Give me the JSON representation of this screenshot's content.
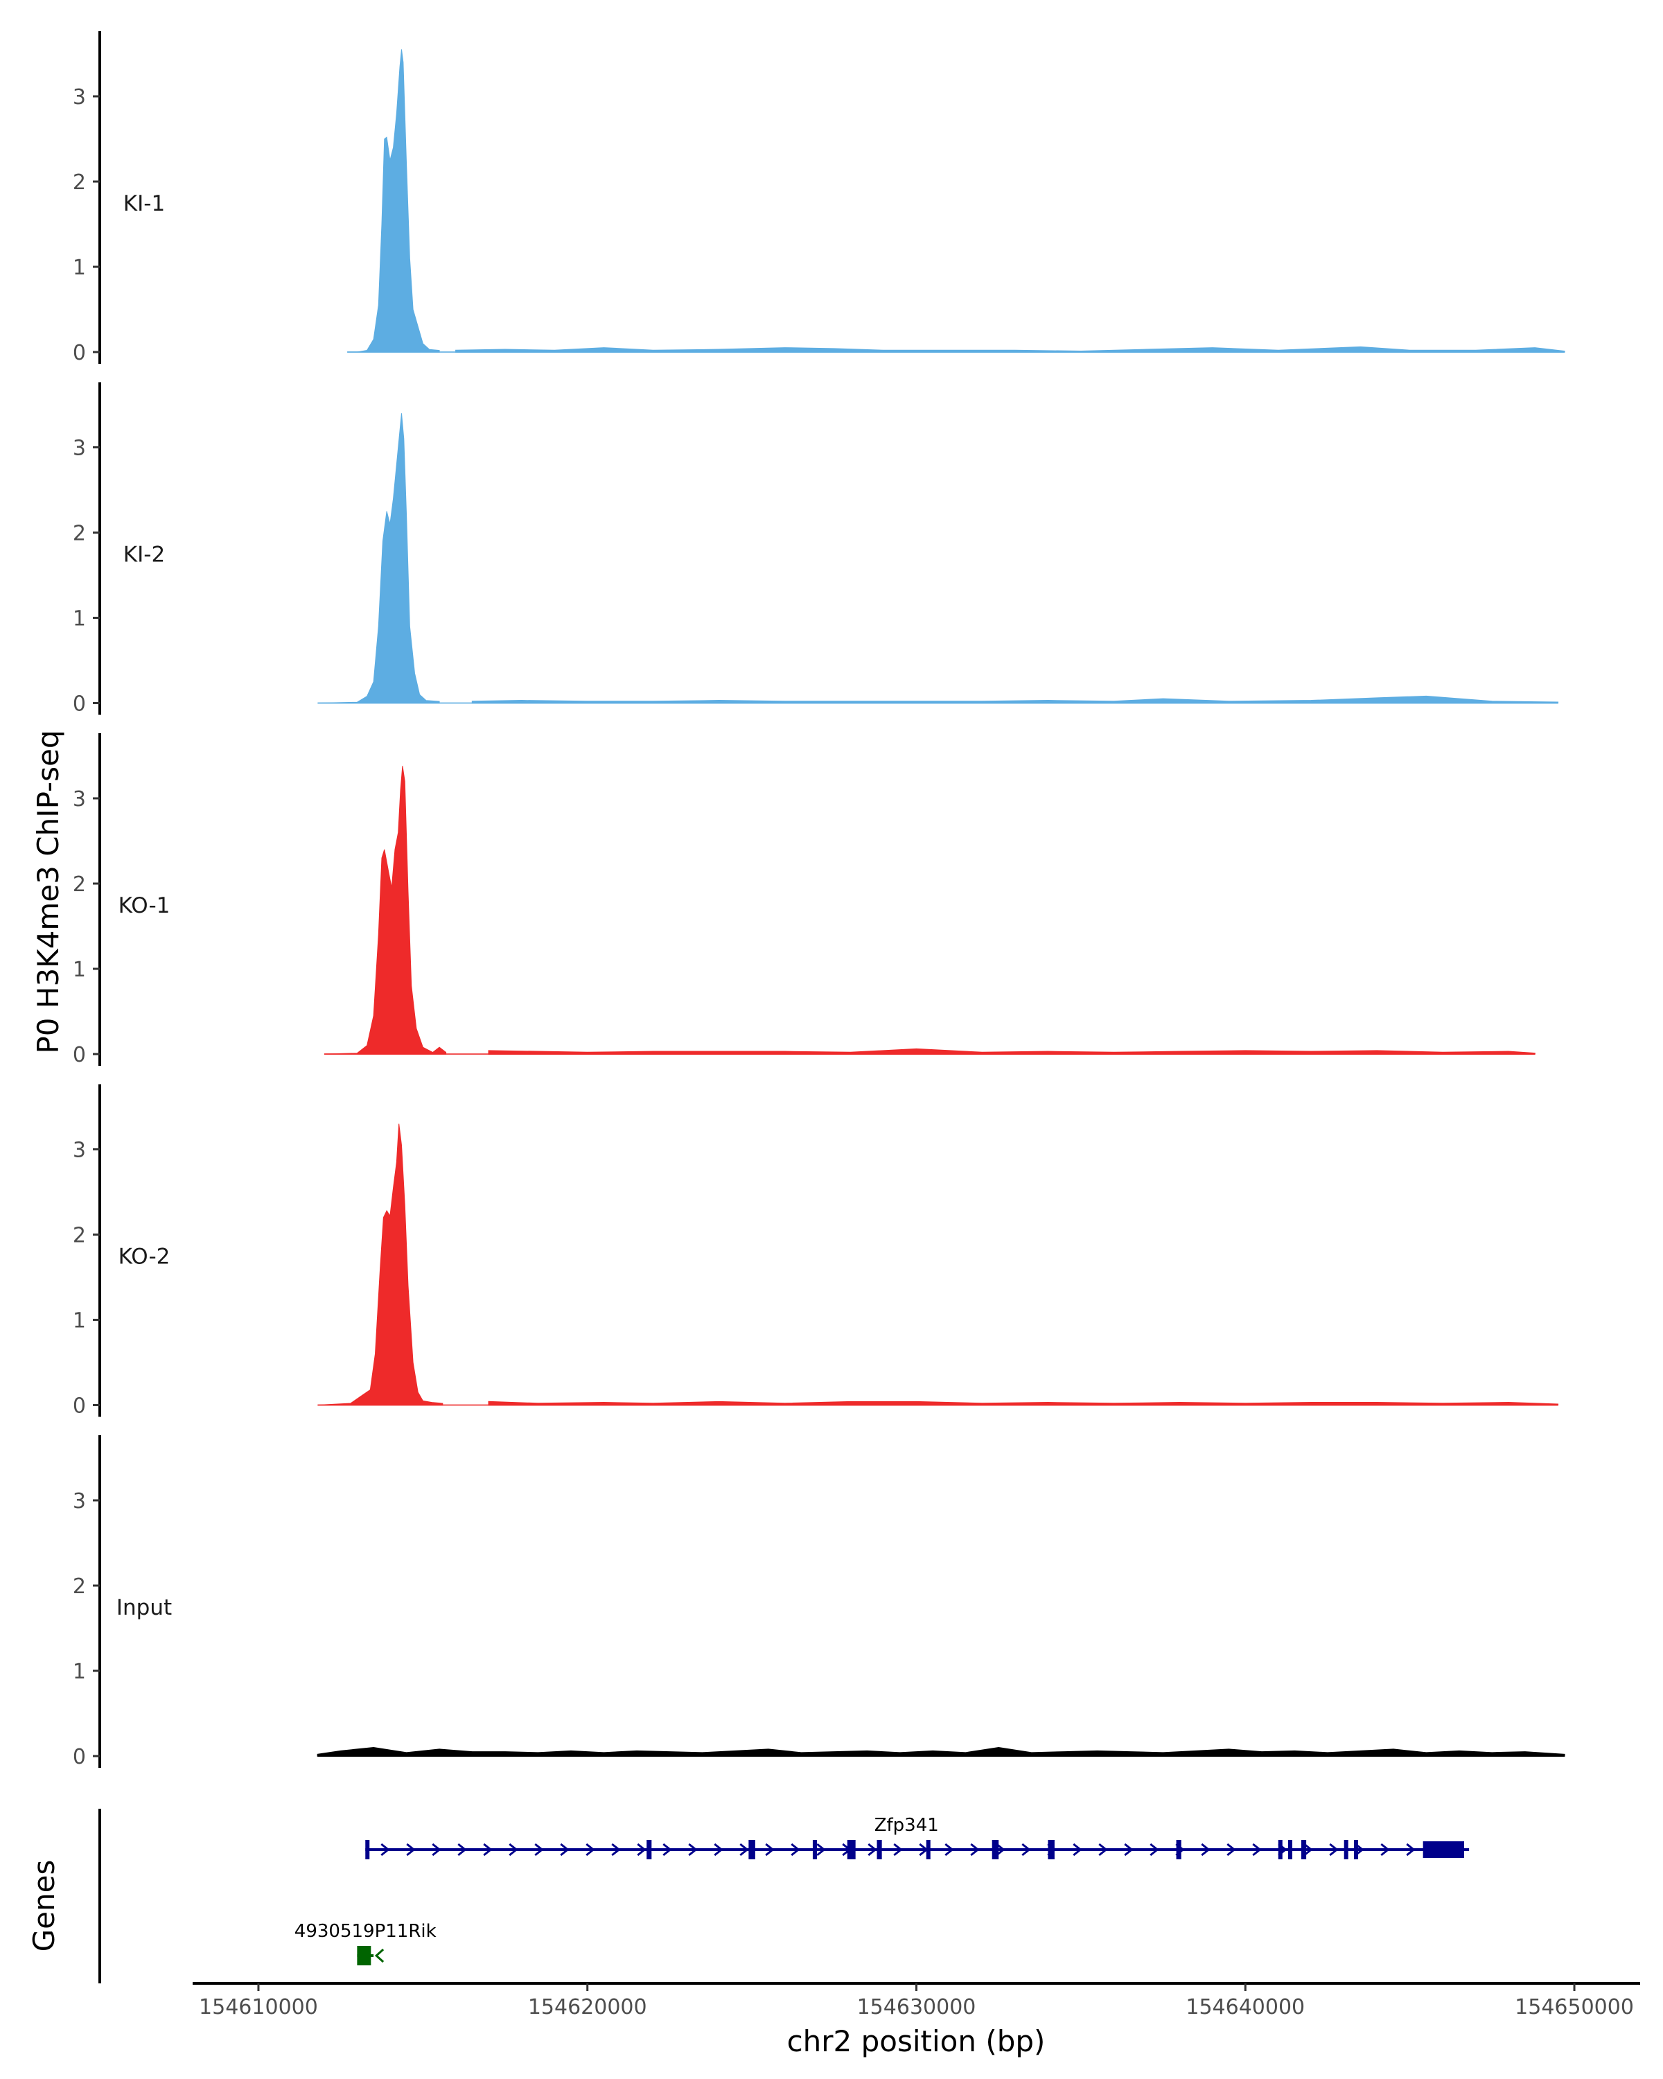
{
  "chart_data": {
    "type": "area",
    "ylabel": "P0 H3K4me3 ChIP-seq",
    "xlabel": "chr2 position (bp)",
    "xlim": [
      154608000,
      154652000
    ],
    "xticks": [
      154610000,
      154620000,
      154630000,
      154640000,
      154650000
    ],
    "xtick_labels": [
      "154610000",
      "154620000",
      "154630000",
      "154640000",
      "154650000"
    ],
    "ylim": [
      0,
      3.8
    ],
    "yticks": [
      0,
      1,
      2,
      3
    ],
    "ytick_labels": [
      "0",
      "1",
      "2",
      "3"
    ],
    "tracks": [
      {
        "name": "KI-1",
        "color": "#5dade2",
        "signal_start": 154612700,
        "signal_end": 154649700,
        "peak": [
          [
            154612700,
            0.0
          ],
          [
            154613000,
            0.0
          ],
          [
            154613300,
            0.02
          ],
          [
            154613500,
            0.15
          ],
          [
            154613650,
            0.55
          ],
          [
            154613750,
            1.5
          ],
          [
            154613830,
            2.5
          ],
          [
            154613900,
            2.52
          ],
          [
            154614000,
            2.25
          ],
          [
            154614100,
            2.4
          ],
          [
            154614200,
            2.8
          ],
          [
            154614300,
            3.35
          ],
          [
            154614350,
            3.55
          ],
          [
            154614400,
            3.4
          ],
          [
            154614500,
            2.2
          ],
          [
            154614600,
            1.1
          ],
          [
            154614700,
            0.5
          ],
          [
            154614850,
            0.3
          ],
          [
            154615000,
            0.1
          ],
          [
            154615200,
            0.03
          ],
          [
            154615500,
            0.02
          ]
        ],
        "background": [
          [
            154616000,
            0.02
          ],
          [
            154617500,
            0.03
          ],
          [
            154619000,
            0.02
          ],
          [
            154620500,
            0.05
          ],
          [
            154622000,
            0.02
          ],
          [
            154624000,
            0.03
          ],
          [
            154626000,
            0.05
          ],
          [
            154627500,
            0.04
          ],
          [
            154629000,
            0.02
          ],
          [
            154631000,
            0.02
          ],
          [
            154633000,
            0.02
          ],
          [
            154635000,
            0.01
          ],
          [
            154637000,
            0.03
          ],
          [
            154639000,
            0.05
          ],
          [
            154641000,
            0.02
          ],
          [
            154643500,
            0.06
          ],
          [
            154645000,
            0.02
          ],
          [
            154647000,
            0.02
          ],
          [
            154648800,
            0.05
          ],
          [
            154649700,
            0.01
          ]
        ]
      },
      {
        "name": "KI-2",
        "color": "#5dade2",
        "signal_start": 154611800,
        "signal_end": 154649500,
        "peak": [
          [
            154611800,
            0.0
          ],
          [
            154613000,
            0.01
          ],
          [
            154613300,
            0.08
          ],
          [
            154613500,
            0.25
          ],
          [
            154613650,
            0.9
          ],
          [
            154613780,
            1.9
          ],
          [
            154613900,
            2.25
          ],
          [
            154614000,
            2.1
          ],
          [
            154614100,
            2.4
          ],
          [
            154614200,
            2.8
          ],
          [
            154614300,
            3.2
          ],
          [
            154614350,
            3.4
          ],
          [
            154614420,
            3.1
          ],
          [
            154614500,
            2.2
          ],
          [
            154614600,
            0.9
          ],
          [
            154614750,
            0.35
          ],
          [
            154614900,
            0.1
          ],
          [
            154615100,
            0.03
          ],
          [
            154615500,
            0.02
          ]
        ],
        "background": [
          [
            154616500,
            0.02
          ],
          [
            154618000,
            0.03
          ],
          [
            154620000,
            0.02
          ],
          [
            154622000,
            0.02
          ],
          [
            154624000,
            0.03
          ],
          [
            154626000,
            0.02
          ],
          [
            154628000,
            0.02
          ],
          [
            154630000,
            0.02
          ],
          [
            154632000,
            0.02
          ],
          [
            154634000,
            0.03
          ],
          [
            154636000,
            0.02
          ],
          [
            154637500,
            0.05
          ],
          [
            154639500,
            0.02
          ],
          [
            154642000,
            0.03
          ],
          [
            154644000,
            0.06
          ],
          [
            154645500,
            0.08
          ],
          [
            154647500,
            0.02
          ],
          [
            154649500,
            0.01
          ]
        ]
      },
      {
        "name": "KO-1",
        "color": "#ee2a2a",
        "signal_start": 154612000,
        "signal_end": 154648800,
        "peak": [
          [
            154612000,
            0.0
          ],
          [
            154613000,
            0.01
          ],
          [
            154613300,
            0.1
          ],
          [
            154613500,
            0.45
          ],
          [
            154613650,
            1.4
          ],
          [
            154613750,
            2.3
          ],
          [
            154613830,
            2.4
          ],
          [
            154613950,
            2.15
          ],
          [
            154614050,
            1.95
          ],
          [
            154614150,
            2.4
          ],
          [
            154614250,
            2.6
          ],
          [
            154614320,
            3.1
          ],
          [
            154614380,
            3.38
          ],
          [
            154614450,
            3.2
          ],
          [
            154614550,
            1.9
          ],
          [
            154614650,
            0.8
          ],
          [
            154614800,
            0.3
          ],
          [
            154615000,
            0.08
          ],
          [
            154615300,
            0.02
          ],
          [
            154615500,
            0.08
          ],
          [
            154615700,
            0.02
          ]
        ],
        "background": [
          [
            154617000,
            0.04
          ],
          [
            154618500,
            0.03
          ],
          [
            154620000,
            0.02
          ],
          [
            154622000,
            0.03
          ],
          [
            154624000,
            0.03
          ],
          [
            154626000,
            0.03
          ],
          [
            154628000,
            0.02
          ],
          [
            154630000,
            0.06
          ],
          [
            154632000,
            0.02
          ],
          [
            154634000,
            0.03
          ],
          [
            154636000,
            0.02
          ],
          [
            154638000,
            0.03
          ],
          [
            154640000,
            0.04
          ],
          [
            154642000,
            0.03
          ],
          [
            154644000,
            0.04
          ],
          [
            154646000,
            0.02
          ],
          [
            154648000,
            0.03
          ],
          [
            154648800,
            0.01
          ]
        ]
      },
      {
        "name": "KO-2",
        "color": "#ee2a2a",
        "signal_start": 154611800,
        "signal_end": 154649500,
        "peak": [
          [
            154611800,
            0.0
          ],
          [
            154612800,
            0.02
          ],
          [
            154613100,
            0.1
          ],
          [
            154613400,
            0.18
          ],
          [
            154613550,
            0.6
          ],
          [
            154613700,
            1.6
          ],
          [
            154613800,
            2.2
          ],
          [
            154613900,
            2.28
          ],
          [
            154614000,
            2.22
          ],
          [
            154614100,
            2.55
          ],
          [
            154614200,
            2.85
          ],
          [
            154614270,
            3.3
          ],
          [
            154614350,
            3.05
          ],
          [
            154614450,
            2.35
          ],
          [
            154614550,
            1.4
          ],
          [
            154614700,
            0.5
          ],
          [
            154614850,
            0.15
          ],
          [
            154615000,
            0.05
          ],
          [
            154615300,
            0.03
          ],
          [
            154615600,
            0.02
          ]
        ],
        "background": [
          [
            154617000,
            0.04
          ],
          [
            154618500,
            0.02
          ],
          [
            154620500,
            0.03
          ],
          [
            154622000,
            0.02
          ],
          [
            154624000,
            0.04
          ],
          [
            154626000,
            0.02
          ],
          [
            154628000,
            0.04
          ],
          [
            154630000,
            0.04
          ],
          [
            154632000,
            0.02
          ],
          [
            154634000,
            0.03
          ],
          [
            154636000,
            0.02
          ],
          [
            154638000,
            0.03
          ],
          [
            154640000,
            0.02
          ],
          [
            154642000,
            0.03
          ],
          [
            154644000,
            0.03
          ],
          [
            154646000,
            0.02
          ],
          [
            154648000,
            0.03
          ],
          [
            154649500,
            0.01
          ]
        ]
      },
      {
        "name": "Input",
        "color": "#000000",
        "signal_start": 154611800,
        "signal_end": 154649700,
        "peak": [],
        "background": [
          [
            154611800,
            0.02
          ],
          [
            154612500,
            0.06
          ],
          [
            154613500,
            0.1
          ],
          [
            154614500,
            0.04
          ],
          [
            154615500,
            0.08
          ],
          [
            154616500,
            0.05
          ],
          [
            154617500,
            0.05
          ],
          [
            154618500,
            0.04
          ],
          [
            154619500,
            0.06
          ],
          [
            154620500,
            0.04
          ],
          [
            154621500,
            0.06
          ],
          [
            154622500,
            0.05
          ],
          [
            154623500,
            0.04
          ],
          [
            154624500,
            0.06
          ],
          [
            154625500,
            0.08
          ],
          [
            154626500,
            0.04
          ],
          [
            154627500,
            0.05
          ],
          [
            154628500,
            0.06
          ],
          [
            154629500,
            0.04
          ],
          [
            154630500,
            0.06
          ],
          [
            154631500,
            0.04
          ],
          [
            154632500,
            0.1
          ],
          [
            154633500,
            0.04
          ],
          [
            154634500,
            0.05
          ],
          [
            154635500,
            0.06
          ],
          [
            154636500,
            0.05
          ],
          [
            154637500,
            0.04
          ],
          [
            154638500,
            0.06
          ],
          [
            154639500,
            0.08
          ],
          [
            154640500,
            0.05
          ],
          [
            154641500,
            0.06
          ],
          [
            154642500,
            0.04
          ],
          [
            154643500,
            0.06
          ],
          [
            154644500,
            0.08
          ],
          [
            154645500,
            0.04
          ],
          [
            154646500,
            0.06
          ],
          [
            154647500,
            0.04
          ],
          [
            154648500,
            0.05
          ],
          [
            154649700,
            0.02
          ]
        ]
      }
    ],
    "genes_track_label": "Genes",
    "genes": [
      {
        "name": "Zfp341",
        "strand": "+",
        "color": "#00008b",
        "start": 154613250,
        "end": 154646800,
        "exons": [
          [
            154613250,
            154613350
          ],
          [
            154621800,
            154621950
          ],
          [
            154624900,
            154625100
          ],
          [
            154626850,
            154626950
          ],
          [
            154627900,
            154628150
          ],
          [
            154628800,
            154628950
          ],
          [
            154630300,
            154630380
          ],
          [
            154632300,
            154632500
          ],
          [
            154634000,
            154634200
          ],
          [
            154637900,
            154638050
          ],
          [
            154641000,
            154641100
          ],
          [
            154641300,
            154641380
          ],
          [
            154641700,
            154641850
          ],
          [
            154643000,
            154643080
          ],
          [
            154643300,
            154643380
          ],
          [
            154645400,
            154646650
          ]
        ]
      },
      {
        "name": "4930519P11Rik",
        "strand": "-",
        "color": "#006400",
        "start": 154613000,
        "end": 154613500,
        "exons": [
          [
            154613000,
            154613420
          ]
        ]
      }
    ]
  }
}
